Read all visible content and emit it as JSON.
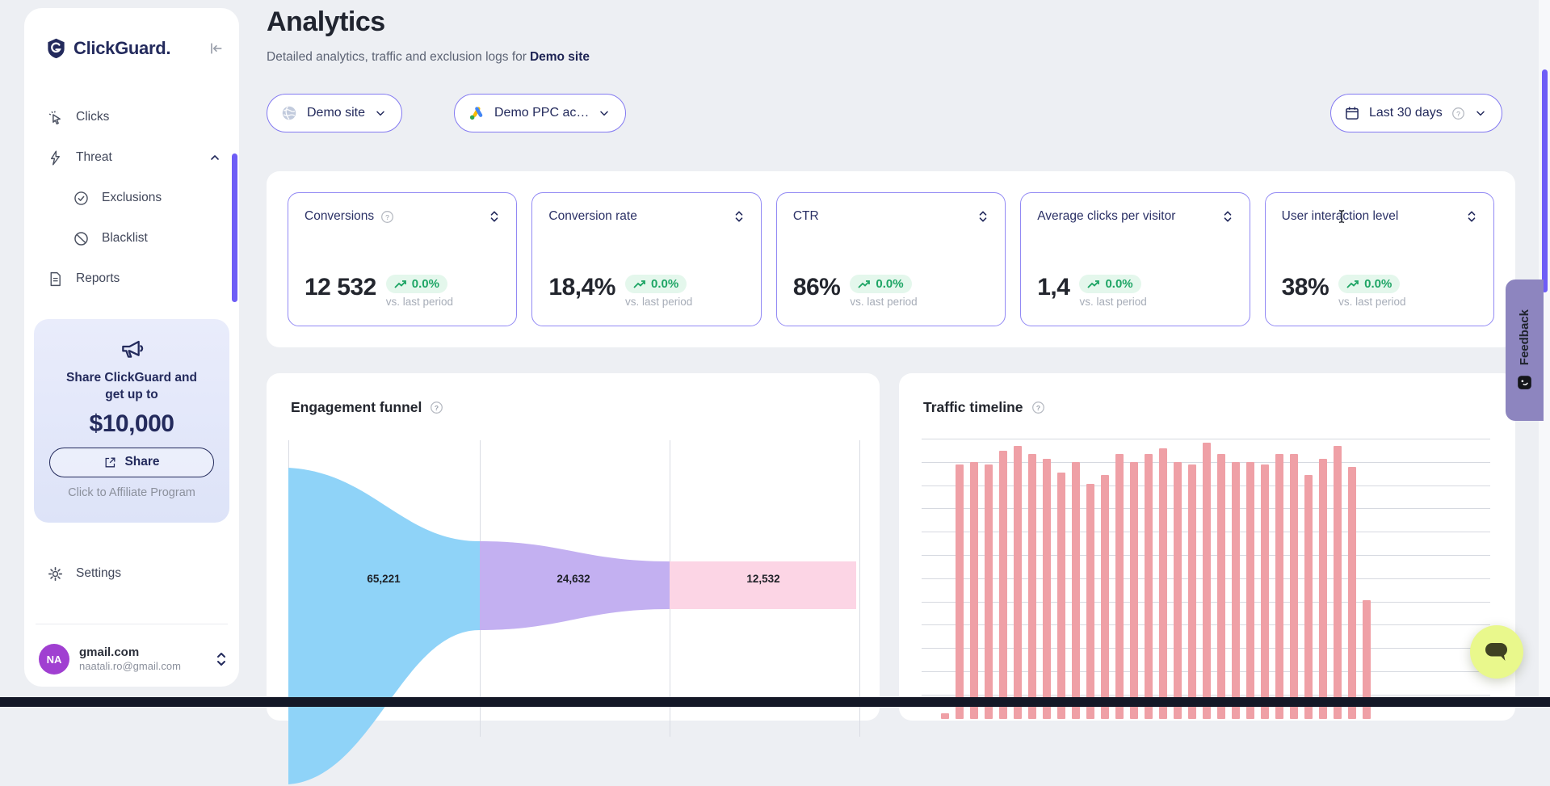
{
  "app": {
    "brand": "ClickGuard."
  },
  "sidebar": {
    "nav": [
      {
        "label": "Clicks"
      },
      {
        "label": "Threat"
      },
      {
        "label": "Exclusions"
      },
      {
        "label": "Blacklist"
      },
      {
        "label": "Reports"
      }
    ],
    "promo": {
      "line1": "Share ClickGuard and",
      "line2": "get up to",
      "amount": "$10,000",
      "share": "Share",
      "caption": "Click to Affiliate Program"
    },
    "settings": "Settings",
    "account": {
      "initials": "NA",
      "name": "gmail.com",
      "email": "naatali.ro@gmail.com"
    }
  },
  "header": {
    "title": "Analytics",
    "subtitle": "Detailed analytics, traffic and exclusion logs for",
    "subtitle_target": "Demo site"
  },
  "filters": {
    "site": "Demo site",
    "ppc_account": "Demo PPC ac…",
    "date_range": "Last 30 days"
  },
  "stats": {
    "delta": "0.0%",
    "caption": "vs. last period",
    "cards": [
      {
        "label": "Conversions",
        "value": "12 532"
      },
      {
        "label": "Conversion rate",
        "value": "18,4%"
      },
      {
        "label": "CTR",
        "value": "86%"
      },
      {
        "label": "Average clicks per visitor",
        "value": "1,4"
      },
      {
        "label": "User interaction level",
        "value": "38%"
      }
    ]
  },
  "panels": {
    "funnel_title": "Engagement funnel",
    "timeline_title": "Traffic timeline"
  },
  "feedback": {
    "label": "Feedback"
  },
  "chart_data": [
    {
      "type": "funnel",
      "title": "Engagement funnel",
      "stages": [
        {
          "label": "65,221",
          "value": 65221,
          "color": "#8fd3f8"
        },
        {
          "label": "24,632",
          "value": 24632,
          "color": "#c3b0f1"
        },
        {
          "label": "12,532",
          "value": 12532,
          "color": "#fcd5e5"
        }
      ],
      "legend": "none",
      "grid": "vertical-stage-lines"
    },
    {
      "type": "bar",
      "title": "Traffic timeline",
      "values": [
        2,
        94,
        95,
        94,
        99,
        101,
        98,
        96,
        91,
        95,
        87,
        90,
        98,
        95,
        98,
        100,
        95,
        94,
        102,
        98,
        95,
        95,
        94,
        98,
        98,
        90,
        96,
        101,
        93,
        44
      ],
      "unit": "relative-percent-height",
      "color": "#efa0a6",
      "grid": "horizontal",
      "axis_labels": "not visible (cut off by viewport)"
    }
  ],
  "colors": {
    "accent_violet": "#6e5df6",
    "pill_border": "#8379f1",
    "navy": "#232a5c",
    "badge_green": "#1ea565",
    "badge_green_bg": "#e4f7ec",
    "funnel_blue": "#8fd3f8",
    "funnel_purple": "#c3b0f1",
    "funnel_pink": "#fcd5e5",
    "bar_pink": "#efa0a6",
    "feedback_tab": "#8d85bf",
    "chat_button": "#e9f88c",
    "avatar_purple": "#a03fd1"
  }
}
